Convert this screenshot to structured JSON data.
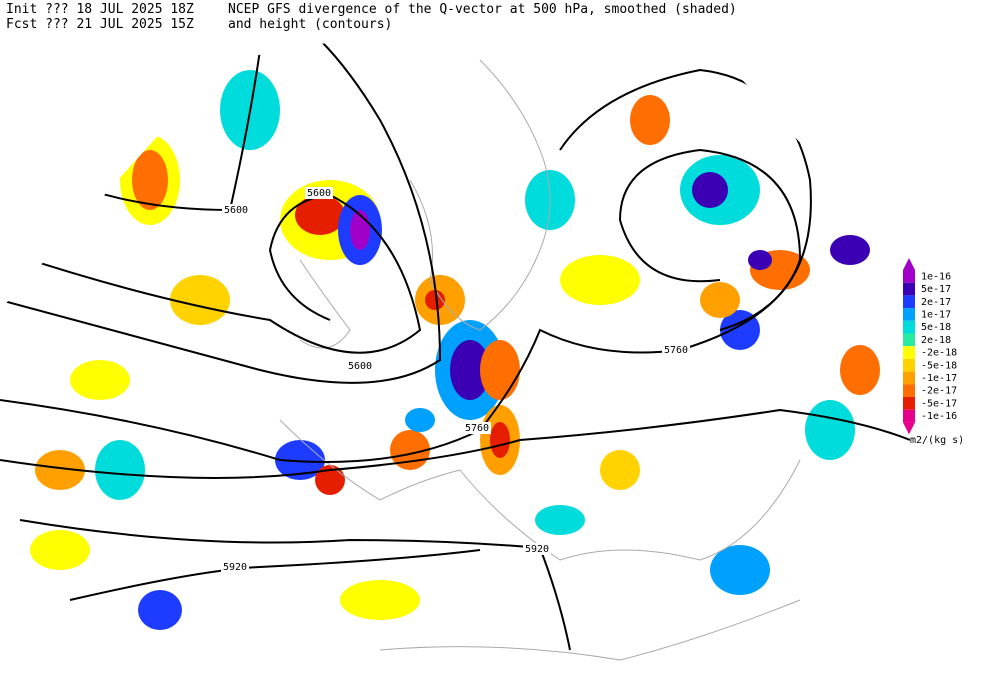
{
  "header": {
    "init": "Init  ??? 18 JUL 2025 18Z",
    "fcst": "Fcst ??? 21 JUL 2025 15Z",
    "title": "NCEP GFS divergence of the Q-vector at 500 hPa, smoothed (shaded)",
    "subtitle": "and height (contours)"
  },
  "contour_labels": [
    "5600",
    "5600",
    "5600",
    "5760",
    "5760",
    "5920",
    "5920"
  ],
  "colorbar": {
    "units": "m2/(kg s)",
    "levels": [
      {
        "label": "1e-16",
        "color": "#a000c8"
      },
      {
        "label": "5e-17",
        "color": "#3c00b4"
      },
      {
        "label": "2e-17",
        "color": "#1e3cff"
      },
      {
        "label": "1e-17",
        "color": "#00a0ff"
      },
      {
        "label": "5e-18",
        "color": "#00dcdc"
      },
      {
        "label": "2e-18",
        "color": "#28eba0"
      },
      {
        "label": "-2e-18",
        "color": "#ffff00"
      },
      {
        "label": "-5e-18",
        "color": "#ffd200"
      },
      {
        "label": "-1e-17",
        "color": "#ffa000"
      },
      {
        "label": "-2e-17",
        "color": "#ff6e00"
      },
      {
        "label": "-5e-17",
        "color": "#e61e00"
      },
      {
        "label": "-1e-16",
        "color": "#e6008c"
      }
    ]
  }
}
